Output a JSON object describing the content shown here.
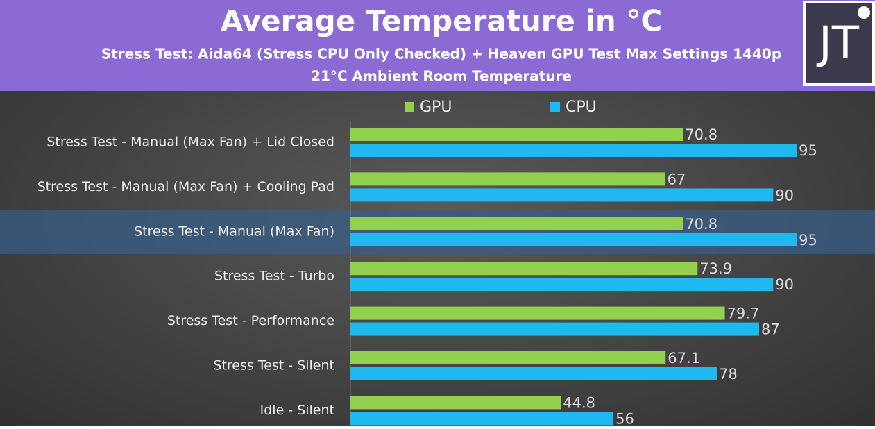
{
  "chart_data": {
    "type": "hbar",
    "title": "Average Temperature in °C",
    "subtitle": [
      "Stress Test: Aida64 (Stress CPU Only Checked) + Heaven GPU Test Max Settings 1440p",
      "21°C Ambient Room Temperature"
    ],
    "categories": [
      "Stress Test - Manual (Max Fan) + Lid Closed",
      "Stress Test - Manual (Max Fan) + Cooling Pad",
      "Stress Test - Manual (Max Fan)",
      "Stress Test - Turbo",
      "Stress Test - Performance",
      "Stress Test - Silent",
      "Idle - Silent"
    ],
    "series": [
      {
        "name": "GPU",
        "color": "#92d050",
        "values": [
          70.8,
          67,
          70.8,
          73.9,
          79.7,
          67.1,
          44.8
        ]
      },
      {
        "name": "CPU",
        "color": "#1fb8ef",
        "values": [
          95,
          90,
          95,
          90,
          87,
          78,
          56
        ]
      }
    ],
    "xlim": [
      0,
      100
    ]
  },
  "logo": "JT"
}
